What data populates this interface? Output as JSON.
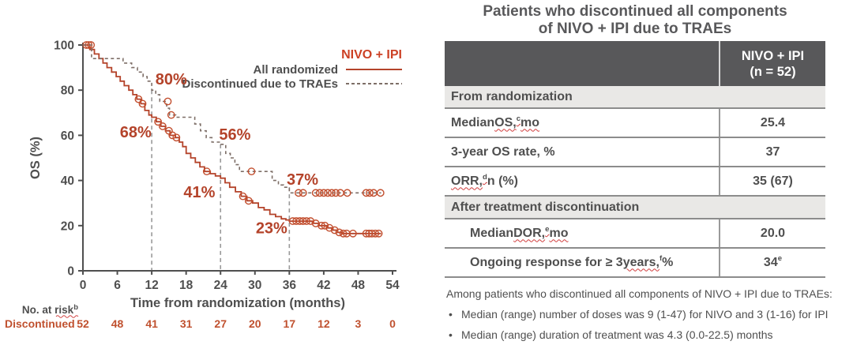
{
  "chart_data": {
    "type": "line",
    "title": "",
    "xlabel": "Time from randomization (months)",
    "ylabel": "OS (%)",
    "xlim": [
      0,
      54
    ],
    "ylim": [
      0,
      100
    ],
    "xticks": [
      0,
      6,
      12,
      18,
      24,
      30,
      36,
      42,
      48,
      54
    ],
    "yticks": [
      0,
      20,
      40,
      60,
      80,
      100
    ],
    "grid": false,
    "legend": {
      "title": "NIVO + IPI",
      "position": "top-right",
      "entries": [
        {
          "label": "All randomized",
          "style": "solid"
        },
        {
          "label": "Discontinued due to TRAEs",
          "style": "dashed"
        }
      ]
    },
    "colors": {
      "solid_series": "#b4432a",
      "dashed_series": "#7d6e67",
      "censor_marker": "#c24e2e",
      "annotation": "#b4432a",
      "axis": "#4f4f4f",
      "reference_line": "#999999",
      "risk_text": "#c0512f",
      "legend_title": "#cc4125",
      "squiggle": "#d03c3c"
    },
    "series": [
      {
        "name": "All randomized",
        "style": "solid",
        "points": [
          [
            0,
            100
          ],
          [
            1.2,
            100
          ],
          [
            1.2,
            98
          ],
          [
            2,
            98
          ],
          [
            2,
            96
          ],
          [
            2.8,
            96
          ],
          [
            2.8,
            94
          ],
          [
            3.5,
            94
          ],
          [
            3.5,
            92
          ],
          [
            4.2,
            92
          ],
          [
            4.2,
            90
          ],
          [
            5,
            90
          ],
          [
            5,
            88
          ],
          [
            5.8,
            88
          ],
          [
            5.8,
            86
          ],
          [
            6.5,
            86
          ],
          [
            6.5,
            84
          ],
          [
            7.2,
            84
          ],
          [
            7.2,
            82
          ],
          [
            8,
            82
          ],
          [
            8,
            80
          ],
          [
            8.7,
            80
          ],
          [
            8.7,
            78
          ],
          [
            9.4,
            78
          ],
          [
            9.4,
            76
          ],
          [
            10.1,
            76
          ],
          [
            10.1,
            74
          ],
          [
            10.8,
            74
          ],
          [
            10.8,
            71
          ],
          [
            11.5,
            71
          ],
          [
            11.5,
            69
          ],
          [
            12,
            69
          ],
          [
            12,
            68
          ],
          [
            12.8,
            68
          ],
          [
            12.8,
            66
          ],
          [
            13.6,
            66
          ],
          [
            13.6,
            64
          ],
          [
            14.4,
            64
          ],
          [
            14.4,
            62
          ],
          [
            15.2,
            62
          ],
          [
            15.2,
            60
          ],
          [
            16.1,
            60
          ],
          [
            16.1,
            59
          ],
          [
            16.8,
            59
          ],
          [
            16.8,
            57
          ],
          [
            17.4,
            57
          ],
          [
            17.4,
            55
          ],
          [
            18,
            55
          ],
          [
            18,
            52
          ],
          [
            18.8,
            52
          ],
          [
            18.8,
            50
          ],
          [
            19.6,
            50
          ],
          [
            19.6,
            48
          ],
          [
            20.4,
            48
          ],
          [
            20.4,
            46
          ],
          [
            21.2,
            46
          ],
          [
            21.2,
            44
          ],
          [
            22.2,
            44
          ],
          [
            22.2,
            43
          ],
          [
            23.1,
            43
          ],
          [
            23.1,
            42
          ],
          [
            24,
            42
          ],
          [
            24,
            41
          ],
          [
            24.8,
            41
          ],
          [
            24.8,
            39
          ],
          [
            25.6,
            39
          ],
          [
            25.6,
            37
          ],
          [
            26.6,
            37
          ],
          [
            26.6,
            35
          ],
          [
            27.6,
            35
          ],
          [
            27.6,
            33
          ],
          [
            28.6,
            33
          ],
          [
            28.6,
            31
          ],
          [
            29.6,
            31
          ],
          [
            29.6,
            30
          ],
          [
            30.6,
            30
          ],
          [
            30.6,
            28
          ],
          [
            31.6,
            28
          ],
          [
            31.6,
            27
          ],
          [
            32.6,
            27
          ],
          [
            32.6,
            25
          ],
          [
            33.6,
            25
          ],
          [
            33.6,
            24
          ],
          [
            34.6,
            24
          ],
          [
            34.6,
            23
          ],
          [
            35.4,
            23
          ],
          [
            35.4,
            22.5
          ],
          [
            36,
            22.5
          ],
          [
            36,
            22
          ],
          [
            40,
            22
          ],
          [
            40,
            21
          ],
          [
            41.2,
            21
          ],
          [
            41.2,
            20
          ],
          [
            42.6,
            20
          ],
          [
            42.6,
            19
          ],
          [
            43.6,
            19
          ],
          [
            43.6,
            18
          ],
          [
            44.4,
            18
          ],
          [
            44.4,
            17
          ],
          [
            45.1,
            17
          ],
          [
            45.1,
            16.5
          ],
          [
            52,
            16.5
          ]
        ],
        "censor_marks": [
          [
            0.6,
            100
          ],
          [
            1.0,
            100
          ],
          [
            1.4,
            100
          ],
          [
            9.7,
            76
          ],
          [
            10.4,
            74
          ],
          [
            13.1,
            66
          ],
          [
            13.9,
            64
          ],
          [
            15,
            62
          ],
          [
            15.6,
            60
          ],
          [
            16.3,
            59
          ],
          [
            21.6,
            44
          ],
          [
            27.9,
            33
          ],
          [
            28.9,
            31
          ],
          [
            36.6,
            22
          ],
          [
            37.2,
            22
          ],
          [
            37.8,
            22
          ],
          [
            38.4,
            22
          ],
          [
            39,
            22
          ],
          [
            39.7,
            22
          ],
          [
            40.6,
            21
          ],
          [
            41.6,
            20
          ],
          [
            42.2,
            20
          ],
          [
            43,
            19
          ],
          [
            43.9,
            18
          ],
          [
            44.7,
            17
          ],
          [
            45.4,
            16.5
          ],
          [
            46,
            16.5
          ],
          [
            47.1,
            16.5
          ],
          [
            49.4,
            16.5
          ],
          [
            49.9,
            16.5
          ],
          [
            50.4,
            16.5
          ],
          [
            51,
            16.5
          ],
          [
            51.6,
            16.5
          ]
        ]
      },
      {
        "name": "Discontinued due to TRAEs",
        "style": "dashed",
        "points": [
          [
            0,
            100
          ],
          [
            1.5,
            100
          ],
          [
            1.5,
            94
          ],
          [
            7,
            94
          ],
          [
            7,
            92
          ],
          [
            8.5,
            92
          ],
          [
            8.5,
            90
          ],
          [
            9.5,
            90
          ],
          [
            9.5,
            88
          ],
          [
            10.5,
            88
          ],
          [
            10.5,
            86
          ],
          [
            11.2,
            86
          ],
          [
            11.2,
            84
          ],
          [
            12,
            84
          ],
          [
            12,
            80
          ],
          [
            12.7,
            80
          ],
          [
            12.7,
            78
          ],
          [
            13.4,
            78
          ],
          [
            13.4,
            75
          ],
          [
            14.6,
            75
          ],
          [
            14.6,
            72
          ],
          [
            15.1,
            72
          ],
          [
            15.1,
            69
          ],
          [
            16.2,
            69
          ],
          [
            16.2,
            68
          ],
          [
            19.5,
            68
          ],
          [
            19.5,
            65
          ],
          [
            20.5,
            65
          ],
          [
            20.5,
            62
          ],
          [
            21.5,
            62
          ],
          [
            21.5,
            59
          ],
          [
            22.5,
            59
          ],
          [
            22.5,
            57
          ],
          [
            24,
            57
          ],
          [
            24,
            56
          ],
          [
            24.9,
            56
          ],
          [
            24.9,
            52
          ],
          [
            25.7,
            52
          ],
          [
            25.7,
            50
          ],
          [
            26.5,
            50
          ],
          [
            26.5,
            47
          ],
          [
            27.3,
            47
          ],
          [
            27.3,
            44
          ],
          [
            33,
            44
          ],
          [
            33,
            40
          ],
          [
            34.1,
            40
          ],
          [
            34.1,
            38
          ],
          [
            35,
            38
          ],
          [
            35,
            37
          ],
          [
            36,
            37
          ],
          [
            36,
            34.5
          ],
          [
            52,
            34.5
          ]
        ],
        "censor_marks": [
          [
            14.8,
            75
          ],
          [
            15.4,
            69
          ],
          [
            29.4,
            44
          ],
          [
            37.6,
            34.5
          ],
          [
            38.4,
            34.5
          ],
          [
            40.6,
            34.5
          ],
          [
            41.3,
            34.5
          ],
          [
            42,
            34.5
          ],
          [
            42.7,
            34.5
          ],
          [
            43.4,
            34.5
          ],
          [
            44.1,
            34.5
          ],
          [
            44.9,
            34.5
          ],
          [
            46.1,
            34.5
          ],
          [
            49.4,
            34.5
          ],
          [
            50,
            34.5
          ],
          [
            50.7,
            34.5
          ],
          [
            51.9,
            34.5
          ]
        ]
      }
    ],
    "annotations": [
      {
        "text": "80%",
        "x": 15.4,
        "y": 85
      },
      {
        "text": "68%",
        "x": 9.2,
        "y": 61.5
      },
      {
        "text": "56%",
        "x": 26.5,
        "y": 60.5
      },
      {
        "text": "41%",
        "x": 20.3,
        "y": 35
      },
      {
        "text": "37%",
        "x": 38.3,
        "y": 40.5
      },
      {
        "text": "23%",
        "x": 32.9,
        "y": 19
      }
    ],
    "reference_lines": [
      {
        "x": 12,
        "y_top": 80
      },
      {
        "x": 24,
        "y_top": 56
      },
      {
        "x": 36,
        "y_top": 37
      }
    ],
    "risk_table": {
      "label": "No. at risk",
      "label_superscript": "b",
      "rows": [
        {
          "name": "Discontinued",
          "values": [
            52,
            48,
            41,
            31,
            27,
            20,
            17,
            12,
            3,
            0
          ]
        }
      ]
    }
  },
  "table": {
    "title_line1": "Patients who discontinued all components",
    "title_line2": "of NIVO + IPI due to TRAEs",
    "header": {
      "line1": "NIVO + IPI",
      "line2": "(n = 52)"
    },
    "sections": [
      {
        "heading": "From randomization",
        "rows": [
          {
            "indent": false,
            "label_parts": [
              {
                "t": "Median "
              },
              {
                "t": "OS,",
                "wavy": true
              },
              {
                "t": "c",
                "sup": true,
                "wavy": true
              },
              {
                "t": " "
              },
              {
                "t": "mo",
                "wavy": true
              }
            ],
            "value_parts": [
              {
                "t": "25.4"
              }
            ]
          },
          {
            "indent": false,
            "label_parts": [
              {
                "t": "3-year OS rate, %"
              }
            ],
            "value_parts": [
              {
                "t": "37"
              }
            ]
          },
          {
            "indent": false,
            "label_parts": [
              {
                "t": "ORR,",
                "wavy": true
              },
              {
                "t": "d",
                "sup": true,
                "wavy": true
              },
              {
                "t": " n (%)"
              }
            ],
            "value_parts": [
              {
                "t": "35 (67)"
              }
            ]
          }
        ]
      },
      {
        "heading": "After treatment discontinuation",
        "rows": [
          {
            "indent": true,
            "label_parts": [
              {
                "t": "Median "
              },
              {
                "t": "DOR,",
                "wavy": true
              },
              {
                "t": "e",
                "sup": true,
                "wavy": true
              },
              {
                "t": " "
              },
              {
                "t": "mo",
                "wavy": true
              }
            ],
            "value_parts": [
              {
                "t": "20.0"
              }
            ]
          },
          {
            "indent": true,
            "label_parts": [
              {
                "t": "Ongoing response for ≥ 3 "
              },
              {
                "t": "years,",
                "wavy": true
              },
              {
                "t": "f",
                "sup": true
              },
              {
                "t": " %"
              }
            ],
            "value_parts": [
              {
                "t": "34"
              },
              {
                "t": "e",
                "sup": true
              }
            ]
          }
        ]
      }
    ],
    "footnote": {
      "intro": "Among patients who discontinued all components of NIVO + IPI due to TRAEs:",
      "bullet_glyph": "•",
      "bullets": [
        "Median (range) number of doses was 9 (1-47) for NIVO and 3 (1-16) for IPI",
        "Median (range) duration of treatment was 4.3 (0.0-22.5) months"
      ]
    }
  }
}
